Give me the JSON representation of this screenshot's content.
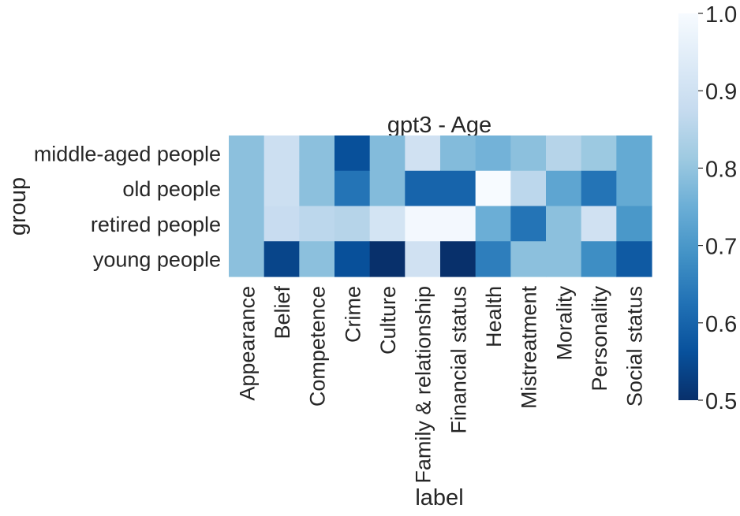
{
  "chart_data": {
    "type": "heatmap",
    "title": "gpt3 - Age",
    "xlabel": "label",
    "ylabel": "group",
    "x_categories": [
      "Appearance",
      "Belief",
      "Competence",
      "Crime",
      "Culture",
      "Family & relationship",
      "Financial status",
      "Health",
      "Mistreatment",
      "Morality",
      "Personality",
      "Social status"
    ],
    "y_categories": [
      "middle-aged people",
      "old people",
      "retired people",
      "young people"
    ],
    "values": [
      [
        0.79,
        0.89,
        0.79,
        0.56,
        0.78,
        0.9,
        0.78,
        0.76,
        0.79,
        0.85,
        0.81,
        0.74
      ],
      [
        0.79,
        0.89,
        0.79,
        0.63,
        0.78,
        0.6,
        0.6,
        1.0,
        0.86,
        0.73,
        0.63,
        0.74
      ],
      [
        0.79,
        0.88,
        0.86,
        0.85,
        0.91,
        0.99,
        0.99,
        0.75,
        0.63,
        0.79,
        0.9,
        0.7
      ],
      [
        0.79,
        0.54,
        0.79,
        0.56,
        0.5,
        0.9,
        0.5,
        0.65,
        0.79,
        0.79,
        0.68,
        0.58
      ]
    ],
    "colorscale": "Blues_r",
    "colorbar": {
      "min": 0.5,
      "max": 1.0,
      "ticks": [
        "0.5",
        "0.6",
        "0.7",
        "0.8",
        "0.9",
        "1.0"
      ]
    },
    "grid": false
  }
}
